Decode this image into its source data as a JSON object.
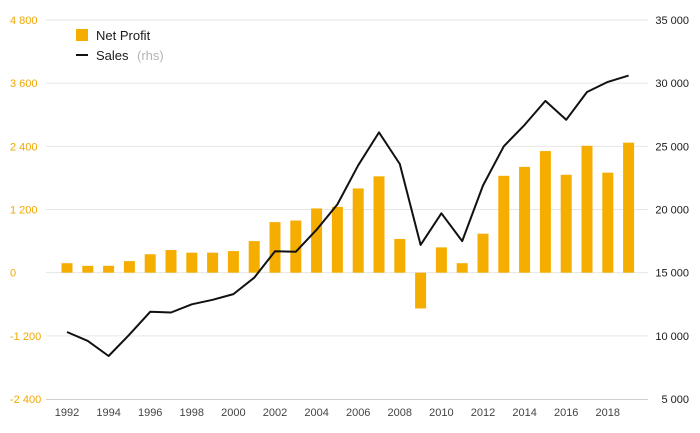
{
  "colors": {
    "bar": "#f5ad00",
    "line": "#111111",
    "grid": "#e6e6e6",
    "left_axis_text": "#f0a800",
    "right_axis_text": "#1a1a1a"
  },
  "legend": {
    "bar_label": "Net Profit",
    "line_label": "Sales",
    "line_suffix": "(rhs)",
    "placement": "top-left"
  },
  "chart_data": {
    "type": "bar",
    "combo": "bar + line (dual axis)",
    "grid": true,
    "x": [
      1992,
      1993,
      1994,
      1995,
      1996,
      1997,
      1998,
      1999,
      2000,
      2001,
      2002,
      2003,
      2004,
      2005,
      2006,
      2007,
      2008,
      2009,
      2010,
      2011,
      2012,
      2013,
      2014,
      2015,
      2016,
      2017,
      2018,
      2019
    ],
    "x_tick_labels": [
      "1992",
      "1994",
      "1996",
      "1998",
      "2000",
      "2002",
      "2004",
      "2006",
      "2008",
      "2010",
      "2012",
      "2014",
      "2016",
      "2018"
    ],
    "x_ticks": [
      1992,
      1994,
      1996,
      1998,
      2000,
      2002,
      2004,
      2006,
      2008,
      2010,
      2012,
      2014,
      2016,
      2018
    ],
    "ylim_left": [
      -2400,
      4800
    ],
    "yticks_left": [
      -2400,
      -1200,
      0,
      1200,
      2400,
      3600,
      4800
    ],
    "ytick_labels_left": [
      "-2 400",
      "-1 200",
      "0",
      "1 200",
      "2 400",
      "3 600",
      "4 800"
    ],
    "ylim_right": [
      5000,
      35000
    ],
    "yticks_right": [
      5000,
      10000,
      15000,
      20000,
      25000,
      30000,
      35000
    ],
    "ytick_labels_right": [
      "5 000",
      "10 000",
      "15 000",
      "20 000",
      "25 000",
      "30 000",
      "35 000"
    ],
    "series": [
      {
        "name": "Net Profit",
        "type": "bar",
        "axis": "left",
        "values": [
          180,
          130,
          130,
          220,
          350,
          430,
          380,
          380,
          410,
          600,
          960,
          990,
          1220,
          1250,
          1600,
          1830,
          640,
          -680,
          480,
          180,
          740,
          1840,
          2010,
          2310,
          1860,
          2410,
          1900,
          2470
        ]
      },
      {
        "name": "Sales",
        "type": "line",
        "axis": "right",
        "values": [
          10300,
          9600,
          8400,
          10100,
          11900,
          11850,
          12500,
          12850,
          13300,
          14600,
          16700,
          16650,
          18400,
          20400,
          23500,
          26100,
          23600,
          17200,
          19700,
          17500,
          21900,
          25000,
          26700,
          28600,
          27100,
          29300,
          30100,
          30600
        ]
      }
    ]
  }
}
